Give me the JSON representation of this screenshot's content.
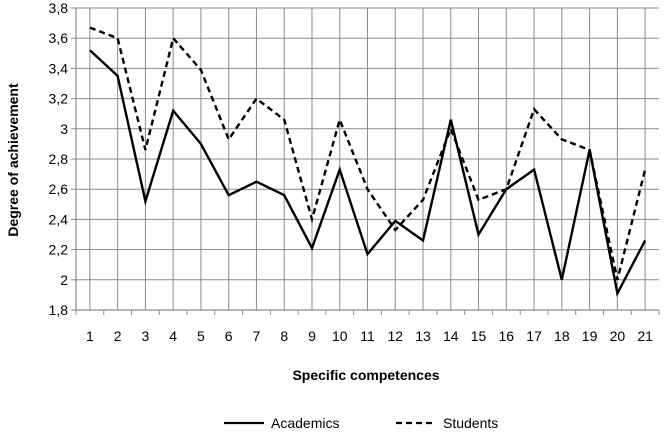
{
  "chart_data": {
    "type": "line",
    "xlabel": "Specific competences",
    "ylabel": "Degree of achievement",
    "ylim": [
      1.8,
      3.8
    ],
    "y_ticks": [
      "1,8",
      "2",
      "2,2",
      "2,4",
      "2,6",
      "2,8",
      "3",
      "3,2",
      "3,4",
      "3,6",
      "3,8"
    ],
    "grid": "horizontal and vertical",
    "legend": "bottom",
    "categories": [
      "1",
      "2",
      "3",
      "4",
      "5",
      "6",
      "7",
      "8",
      "9",
      "10",
      "11",
      "12",
      "13",
      "14",
      "15",
      "16",
      "17",
      "18",
      "19",
      "20",
      "21"
    ],
    "series": [
      {
        "name": "Academics",
        "style": "solid",
        "color": "#000000",
        "values": [
          3.52,
          3.35,
          2.52,
          3.12,
          2.9,
          2.56,
          2.65,
          2.56,
          2.21,
          2.73,
          2.17,
          2.39,
          2.26,
          3.06,
          2.3,
          2.6,
          2.73,
          2.0,
          2.86,
          1.91,
          2.26
        ]
      },
      {
        "name": "Students",
        "style": "dashed",
        "color": "#000000",
        "values": [
          3.67,
          3.6,
          2.86,
          3.6,
          3.39,
          2.93,
          3.2,
          3.06,
          2.4,
          3.06,
          2.6,
          2.33,
          2.53,
          3.0,
          2.53,
          2.6,
          3.13,
          2.93,
          2.86,
          2.0,
          2.73
        ]
      }
    ]
  }
}
